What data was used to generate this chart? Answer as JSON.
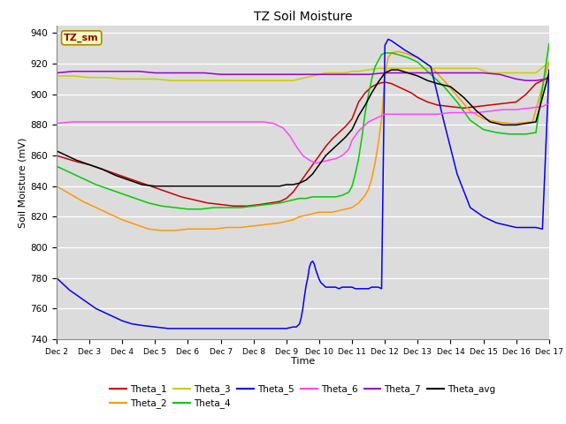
{
  "title": "TZ Soil Moisture",
  "xlabel": "Time",
  "ylabel": "Soil Moisture (mV)",
  "ylim": [
    740,
    945
  ],
  "yticks": [
    740,
    760,
    780,
    800,
    820,
    840,
    860,
    880,
    900,
    920,
    940
  ],
  "bg_color": "#dcdcdc",
  "fig_color": "#ffffff",
  "annotation": "TZ_sm",
  "annotation_box_facecolor": "#ffffc0",
  "annotation_box_edgecolor": "#aa8800",
  "annotation_text_color": "#990000",
  "x_tick_labels": [
    "Dec 2",
    "Dec 3",
    "Dec 4",
    "Dec 5",
    "Dec 6",
    "Dec 7",
    "Dec 8",
    "Dec 9",
    "Dec 10",
    "Dec 11",
    "Dec 12",
    "Dec 13",
    "Dec 14",
    "Dec 15",
    "Dec 16",
    "Dec 17"
  ],
  "legend_order": [
    "Theta_1",
    "Theta_2",
    "Theta_3",
    "Theta_4",
    "Theta_5",
    "Theta_6",
    "Theta_7",
    "Theta_avg"
  ],
  "series": {
    "Theta_1": {
      "color": "#cc0000",
      "x": [
        0,
        0.3,
        0.6,
        1.0,
        1.4,
        1.8,
        2.2,
        2.6,
        3.0,
        3.4,
        3.8,
        4.2,
        4.6,
        5.0,
        5.4,
        5.8,
        6.2,
        6.5,
        6.8,
        7.0,
        7.2,
        7.4,
        7.6,
        7.8,
        8.0,
        8.2,
        8.4,
        8.6,
        8.8,
        9.0,
        9.2,
        9.4,
        9.6,
        9.8,
        10.0,
        10.2,
        10.5,
        10.8,
        11.0,
        11.3,
        11.6,
        12.0,
        12.4,
        12.8,
        13.2,
        13.6,
        14.0,
        14.3,
        14.6,
        15.0
      ],
      "y": [
        860,
        858,
        856,
        854,
        851,
        848,
        845,
        842,
        839,
        836,
        833,
        831,
        829,
        828,
        827,
        827,
        828,
        829,
        830,
        832,
        836,
        842,
        848,
        854,
        860,
        866,
        871,
        875,
        879,
        884,
        895,
        901,
        905,
        907,
        908,
        907,
        904,
        901,
        898,
        895,
        893,
        892,
        891,
        892,
        893,
        894,
        895,
        900,
        907,
        911
      ]
    },
    "Theta_2": {
      "color": "#ff9900",
      "x": [
        0,
        0.4,
        0.8,
        1.2,
        1.6,
        2.0,
        2.4,
        2.8,
        3.2,
        3.6,
        4.0,
        4.4,
        4.8,
        5.2,
        5.6,
        6.0,
        6.4,
        6.8,
        7.0,
        7.2,
        7.4,
        7.6,
        7.8,
        8.0,
        8.2,
        8.4,
        8.6,
        8.8,
        9.0,
        9.2,
        9.4,
        9.5,
        9.6,
        9.7,
        9.8,
        9.9,
        10.0,
        10.05,
        10.1,
        10.2,
        10.4,
        10.6,
        11.0,
        11.4,
        11.8,
        12.2,
        12.6,
        13.0,
        13.4,
        13.8,
        14.0,
        14.5,
        15.0
      ],
      "y": [
        840,
        835,
        830,
        826,
        822,
        818,
        815,
        812,
        811,
        811,
        812,
        812,
        812,
        813,
        813,
        814,
        815,
        816,
        817,
        818,
        820,
        821,
        822,
        823,
        823,
        823,
        824,
        825,
        826,
        829,
        834,
        838,
        845,
        855,
        868,
        884,
        910,
        918,
        924,
        927,
        928,
        927,
        924,
        918,
        909,
        899,
        889,
        884,
        882,
        881,
        881,
        882,
        921
      ]
    },
    "Theta_3": {
      "color": "#cccc00",
      "x": [
        0,
        0.5,
        1.0,
        1.5,
        2.0,
        2.5,
        3.0,
        3.5,
        4.0,
        4.5,
        5.0,
        5.5,
        6.0,
        6.4,
        6.8,
        7.0,
        7.2,
        7.4,
        7.6,
        7.8,
        8.0,
        8.2,
        8.5,
        8.8,
        9.0,
        9.2,
        9.5,
        9.8,
        10.0,
        10.3,
        10.6,
        11.0,
        11.4,
        11.8,
        12.2,
        12.5,
        12.8,
        13.2,
        13.6,
        14.0,
        14.3,
        14.6,
        15.0
      ],
      "y": [
        912,
        912,
        911,
        911,
        910,
        910,
        910,
        909,
        909,
        909,
        909,
        909,
        909,
        909,
        909,
        909,
        909,
        910,
        911,
        912,
        913,
        914,
        914,
        914,
        915,
        915,
        916,
        917,
        917,
        917,
        917,
        917,
        917,
        917,
        917,
        917,
        917,
        914,
        914,
        914,
        914,
        914,
        921
      ]
    },
    "Theta_4": {
      "color": "#00cc00",
      "x": [
        0,
        0.4,
        0.8,
        1.2,
        1.6,
        2.0,
        2.4,
        2.8,
        3.2,
        3.6,
        4.0,
        4.4,
        4.8,
        5.2,
        5.6,
        6.0,
        6.4,
        6.8,
        7.0,
        7.2,
        7.4,
        7.6,
        7.8,
        8.0,
        8.15,
        8.3,
        8.5,
        8.7,
        8.9,
        9.0,
        9.1,
        9.2,
        9.3,
        9.4,
        9.5,
        9.6,
        9.7,
        9.8,
        9.9,
        10.0,
        10.1,
        10.2,
        10.4,
        10.7,
        11.0,
        11.4,
        11.8,
        12.2,
        12.6,
        13.0,
        13.4,
        13.8,
        14.0,
        14.3,
        14.6,
        15.0
      ],
      "y": [
        853,
        849,
        845,
        841,
        838,
        835,
        832,
        829,
        827,
        826,
        825,
        825,
        826,
        826,
        826,
        827,
        828,
        829,
        830,
        831,
        832,
        832,
        833,
        833,
        833,
        833,
        833,
        834,
        836,
        840,
        848,
        858,
        872,
        888,
        900,
        910,
        918,
        922,
        926,
        927,
        927,
        927,
        926,
        924,
        921,
        913,
        905,
        895,
        883,
        877,
        875,
        874,
        874,
        874,
        875,
        933
      ]
    },
    "Theta_5": {
      "color": "#0000ff",
      "x": [
        0,
        0.2,
        0.4,
        0.6,
        0.8,
        1.0,
        1.2,
        1.4,
        1.6,
        1.8,
        2.0,
        2.3,
        2.6,
        3.0,
        3.4,
        3.8,
        4.2,
        4.6,
        5.0,
        5.4,
        5.8,
        6.2,
        6.6,
        7.0,
        7.2,
        7.3,
        7.4,
        7.45,
        7.5,
        7.55,
        7.6,
        7.65,
        7.7,
        7.75,
        7.8,
        7.85,
        7.9,
        7.95,
        8.0,
        8.05,
        8.1,
        8.15,
        8.2,
        8.3,
        8.4,
        8.5,
        8.6,
        8.7,
        8.8,
        8.9,
        9.0,
        9.1,
        9.2,
        9.3,
        9.4,
        9.5,
        9.6,
        9.7,
        9.8,
        9.9,
        10.0,
        10.05,
        10.1,
        10.2,
        10.4,
        10.6,
        11.0,
        11.4,
        11.8,
        12.2,
        12.6,
        13.0,
        13.4,
        13.8,
        14.0,
        14.2,
        14.4,
        14.6,
        14.8,
        15.0
      ],
      "y": [
        780,
        776,
        772,
        769,
        766,
        763,
        760,
        758,
        756,
        754,
        752,
        750,
        749,
        748,
        747,
        747,
        747,
        747,
        747,
        747,
        747,
        747,
        747,
        747,
        748,
        748,
        750,
        754,
        760,
        768,
        775,
        780,
        787,
        790,
        791,
        789,
        785,
        782,
        779,
        777,
        776,
        775,
        774,
        774,
        774,
        774,
        773,
        774,
        774,
        774,
        774,
        773,
        773,
        773,
        773,
        773,
        774,
        774,
        774,
        773,
        932,
        934,
        936,
        935,
        932,
        929,
        924,
        918,
        882,
        848,
        826,
        820,
        816,
        814,
        813,
        813,
        813,
        813,
        812,
        916
      ]
    },
    "Theta_6": {
      "color": "#ff44ff",
      "x": [
        0,
        0.5,
        1.0,
        1.5,
        2.0,
        2.5,
        3.0,
        3.5,
        4.0,
        4.5,
        5.0,
        5.5,
        6.0,
        6.3,
        6.6,
        6.9,
        7.1,
        7.3,
        7.5,
        7.7,
        7.9,
        8.1,
        8.3,
        8.5,
        8.7,
        8.9,
        9.0,
        9.2,
        9.5,
        9.8,
        10.0,
        10.4,
        10.8,
        11.2,
        11.6,
        12.0,
        12.4,
        12.8,
        13.2,
        13.6,
        14.0,
        14.4,
        14.8,
        15.0
      ],
      "y": [
        881,
        882,
        882,
        882,
        882,
        882,
        882,
        882,
        882,
        882,
        882,
        882,
        882,
        882,
        881,
        878,
        873,
        866,
        860,
        857,
        855,
        856,
        857,
        858,
        860,
        864,
        870,
        876,
        882,
        885,
        887,
        887,
        887,
        887,
        887,
        888,
        888,
        888,
        889,
        890,
        890,
        891,
        892,
        894
      ]
    },
    "Theta_7": {
      "color": "#9900cc",
      "x": [
        0,
        0.5,
        1.0,
        1.5,
        2.0,
        2.5,
        3.0,
        3.5,
        4.0,
        4.5,
        5.0,
        5.5,
        6.0,
        6.5,
        7.0,
        7.5,
        8.0,
        8.5,
        9.0,
        9.5,
        10.0,
        10.3,
        10.6,
        11.0,
        11.4,
        11.8,
        12.2,
        12.6,
        13.0,
        13.5,
        14.0,
        14.3,
        14.6,
        14.9,
        15.0
      ],
      "y": [
        914,
        915,
        915,
        915,
        915,
        915,
        914,
        914,
        914,
        914,
        913,
        913,
        913,
        913,
        913,
        913,
        913,
        913,
        913,
        913,
        914,
        914,
        914,
        914,
        914,
        914,
        914,
        914,
        914,
        913,
        910,
        909,
        909,
        910,
        912
      ]
    },
    "Theta_avg": {
      "color": "#000000",
      "x": [
        0,
        0.3,
        0.6,
        1.0,
        1.4,
        1.8,
        2.2,
        2.6,
        3.0,
        3.4,
        3.8,
        4.2,
        4.6,
        5.0,
        5.4,
        5.8,
        6.2,
        6.5,
        6.8,
        7.0,
        7.2,
        7.4,
        7.6,
        7.8,
        8.0,
        8.2,
        8.4,
        8.6,
        8.8,
        9.0,
        9.2,
        9.4,
        9.6,
        9.8,
        10.0,
        10.2,
        10.4,
        10.7,
        11.0,
        11.3,
        11.6,
        12.0,
        12.4,
        12.8,
        13.2,
        13.6,
        14.0,
        14.3,
        14.6,
        15.0
      ],
      "y": [
        863,
        860,
        857,
        854,
        851,
        847,
        844,
        841,
        840,
        840,
        840,
        840,
        840,
        840,
        840,
        840,
        840,
        840,
        840,
        841,
        841,
        842,
        844,
        848,
        854,
        860,
        864,
        868,
        872,
        877,
        886,
        893,
        901,
        908,
        914,
        916,
        916,
        914,
        912,
        909,
        907,
        905,
        898,
        889,
        882,
        880,
        880,
        881,
        882,
        914
      ]
    }
  }
}
